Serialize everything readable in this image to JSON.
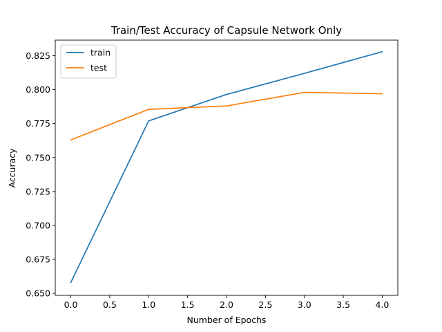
{
  "chart_data": {
    "type": "line",
    "title": "Train/Test Accuracy of Capsule Network Only",
    "xlabel": "Number of Epochs",
    "ylabel": "Accuracy",
    "x": [
      0,
      1,
      2,
      3,
      4
    ],
    "xlim": [
      -0.2,
      4.2
    ],
    "ylim": [
      0.6485,
      0.8365
    ],
    "xticks": [
      0.0,
      0.5,
      1.0,
      1.5,
      2.0,
      2.5,
      3.0,
      3.5,
      4.0
    ],
    "xtick_labels": [
      "0.0",
      "0.5",
      "1.0",
      "1.5",
      "2.0",
      "2.5",
      "3.0",
      "3.5",
      "4.0"
    ],
    "yticks": [
      0.65,
      0.675,
      0.7,
      0.725,
      0.75,
      0.775,
      0.8,
      0.825
    ],
    "ytick_labels": [
      "0.650",
      "0.675",
      "0.700",
      "0.725",
      "0.750",
      "0.775",
      "0.800",
      "0.825"
    ],
    "grid": false,
    "legend_position": "top-left",
    "series": [
      {
        "name": "train",
        "color": "#1f77b4",
        "values": [
          0.658,
          0.777,
          0.7965,
          0.812,
          0.828
        ]
      },
      {
        "name": "test",
        "color": "#ff7f0e",
        "values": [
          0.763,
          0.7855,
          0.788,
          0.798,
          0.797
        ]
      }
    ]
  }
}
